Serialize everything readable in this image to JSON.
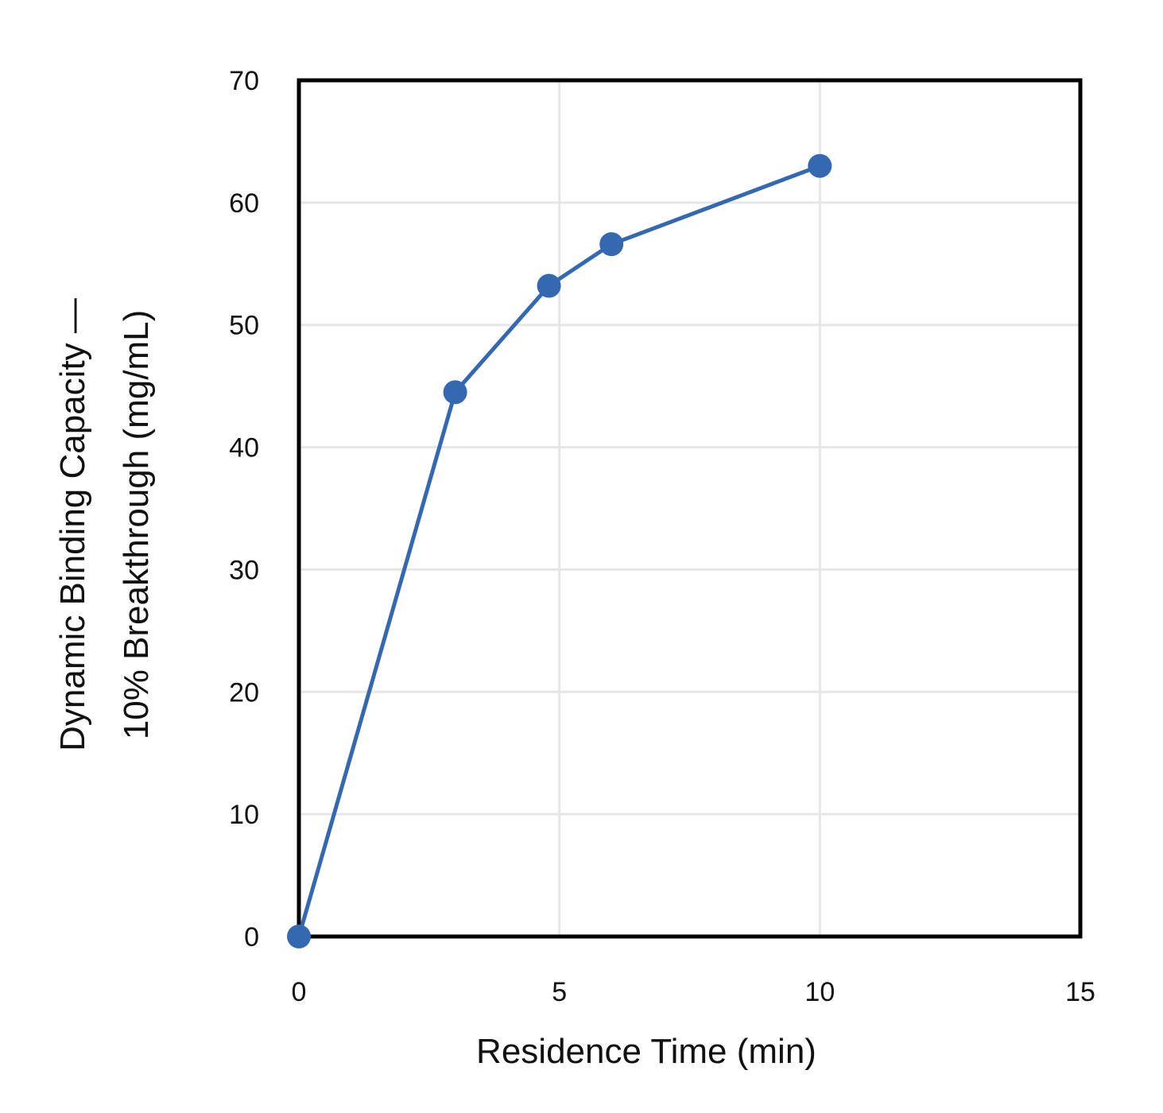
{
  "chart_data": {
    "type": "line",
    "title": "",
    "xlabel": "Residence Time (min)",
    "ylabel_lines": [
      "Dynamic Binding Capacity —",
      "10% Breakthrough (mg/mL)"
    ],
    "xlim": [
      0,
      15
    ],
    "ylim": [
      0,
      70
    ],
    "x_ticks": [
      0,
      5,
      10,
      15
    ],
    "y_ticks": [
      0,
      10,
      20,
      30,
      40,
      50,
      60,
      70
    ],
    "grid": true,
    "legend": "none",
    "series": [
      {
        "name": "Dynamic Binding Capacity",
        "color": "#3468b0",
        "points": [
          {
            "x": 0,
            "y": 0
          },
          {
            "x": 3,
            "y": 44.5
          },
          {
            "x": 4.8,
            "y": 53.2
          },
          {
            "x": 6,
            "y": 56.6
          },
          {
            "x": 10,
            "y": 63
          }
        ]
      }
    ]
  }
}
